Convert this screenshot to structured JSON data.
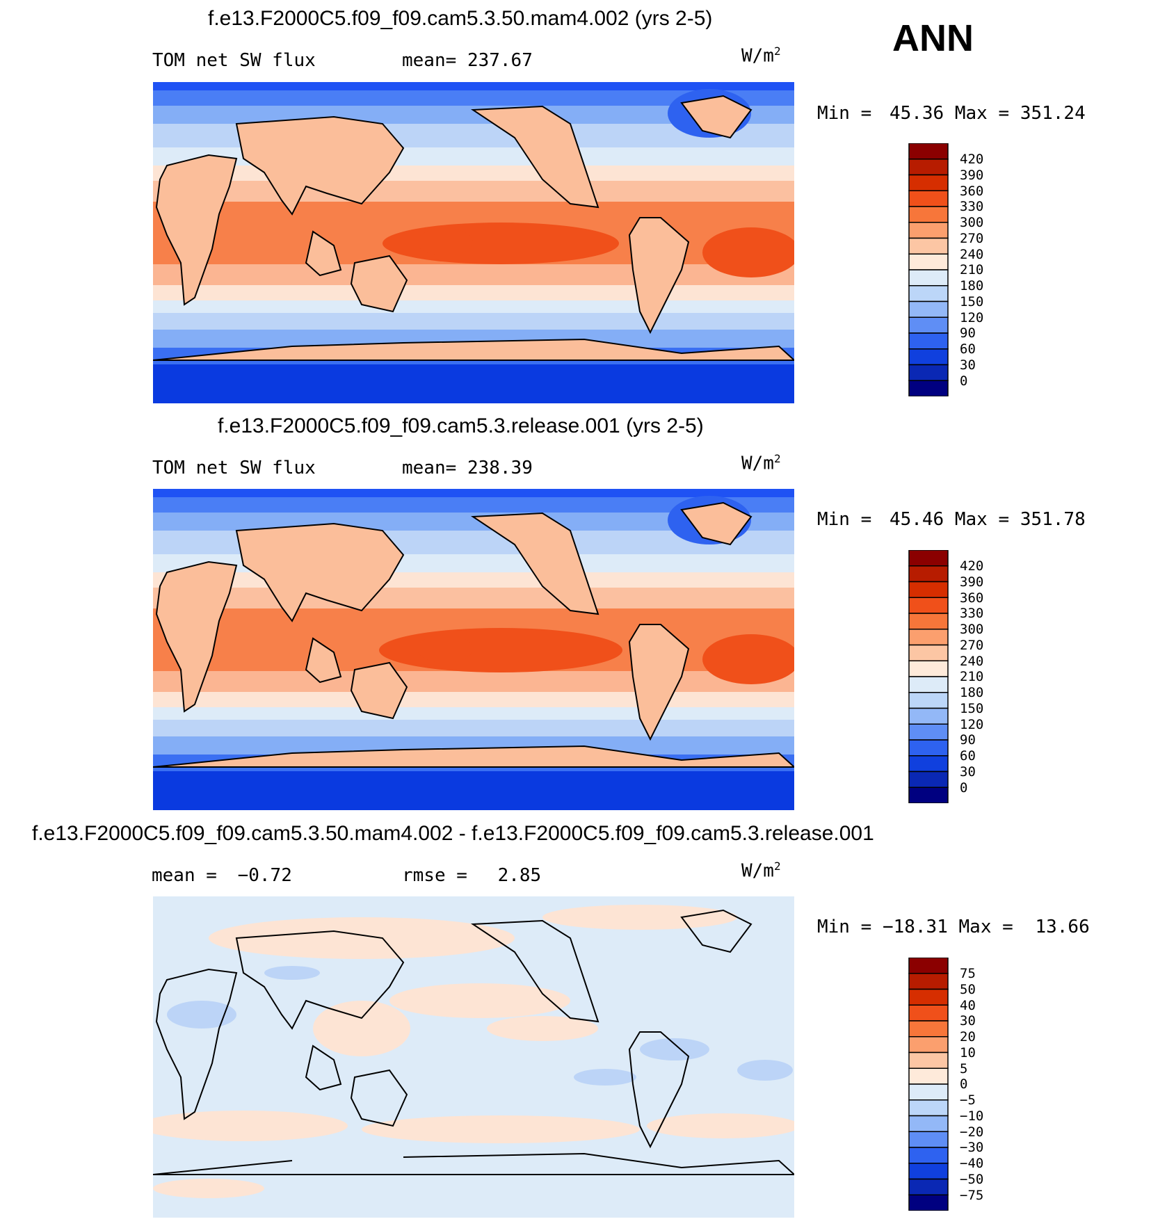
{
  "season": "ANN",
  "panels": [
    {
      "title": "f.e13.F2000C5.f09_f09.cam5.3.50.mam4.002 (yrs 2-5)",
      "left_label": "TOM net SW flux",
      "stat_label": "mean=",
      "stat_value": "237.67",
      "units_base": "W/m",
      "units_exp": "2",
      "min_label": "Min =",
      "min_value": "45.36",
      "max_label": "Max =",
      "max_value": "351.24",
      "colorbar_ticks": [
        "420",
        "390",
        "360",
        "330",
        "300",
        "270",
        "240",
        "210",
        "180",
        "150",
        "120",
        "90",
        "60",
        "30",
        "0"
      ],
      "colorbar_colors": [
        "#8b0000",
        "#b71c00",
        "#d62e00",
        "#f0501a",
        "#f7763a",
        "#fb9f6e",
        "#fcc6a4",
        "#feeada",
        "#ddebf8",
        "#bcd6f8",
        "#93b8f7",
        "#5f8ef5",
        "#2e62f0",
        "#1040de",
        "#0a28b4",
        "#000080"
      ]
    },
    {
      "title": "f.e13.F2000C5.f09_f09.cam5.3.release.001 (yrs 2-5)",
      "left_label": "TOM net SW flux",
      "stat_label": "mean=",
      "stat_value": "238.39",
      "units_base": "W/m",
      "units_exp": "2",
      "min_label": "Min =",
      "min_value": "45.46",
      "max_label": "Max =",
      "max_value": "351.78",
      "colorbar_ticks": [
        "420",
        "390",
        "360",
        "330",
        "300",
        "270",
        "240",
        "210",
        "180",
        "150",
        "120",
        "90",
        "60",
        "30",
        "0"
      ],
      "colorbar_colors": [
        "#8b0000",
        "#b71c00",
        "#d62e00",
        "#f0501a",
        "#f7763a",
        "#fb9f6e",
        "#fcc6a4",
        "#feeada",
        "#ddebf8",
        "#bcd6f8",
        "#93b8f7",
        "#5f8ef5",
        "#2e62f0",
        "#1040de",
        "#0a28b4",
        "#000080"
      ]
    },
    {
      "title": "f.e13.F2000C5.f09_f09.cam5.3.50.mam4.002 - f.e13.F2000C5.f09_f09.cam5.3.release.001",
      "left_label": "mean =",
      "left_value": "−0.72",
      "stat_label": "rmse =",
      "stat_value": "2.85",
      "units_base": "W/m",
      "units_exp": "2",
      "min_label": "Min =",
      "min_value": "−18.31",
      "max_label": "Max =",
      "max_value": "13.66",
      "colorbar_ticks": [
        "75",
        "50",
        "40",
        "30",
        "20",
        "10",
        "5",
        "0",
        "−5",
        "−10",
        "−20",
        "−30",
        "−40",
        "−50",
        "−75"
      ],
      "colorbar_colors": [
        "#8b0000",
        "#b71c00",
        "#d62e00",
        "#f0501a",
        "#f7763a",
        "#fb9f6e",
        "#fcc6a4",
        "#feeada",
        "#ddebf8",
        "#bcd6f8",
        "#93b8f7",
        "#5f8ef5",
        "#2e62f0",
        "#1040de",
        "#0a28b4",
        "#000080"
      ]
    }
  ]
}
